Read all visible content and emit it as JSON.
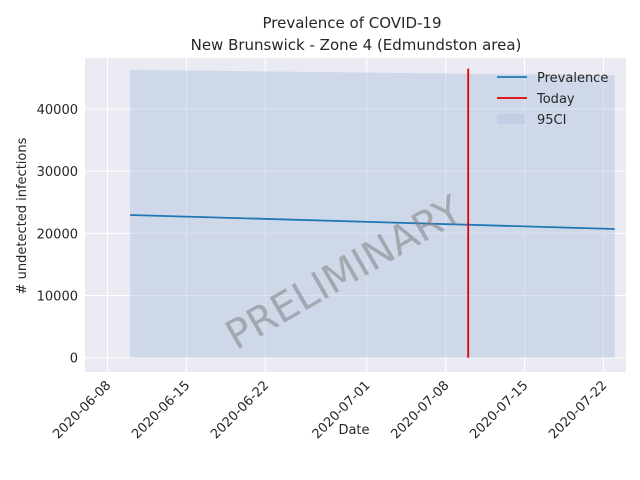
{
  "chart_data": {
    "type": "line",
    "title": "Prevalence of COVID-19",
    "subtitle": "New Brunswick - Zone 4 (Edmundston area)",
    "xlabel": "Date",
    "ylabel": "# undetected infections",
    "x_ticks": [
      "2020-06-08",
      "2020-06-15",
      "2020-06-22",
      "2020-07-01",
      "2020-07-08",
      "2020-07-15",
      "2020-07-22"
    ],
    "y_ticks": [
      0,
      10000,
      20000,
      30000,
      40000
    ],
    "xlim": [
      "2020-06-06",
      "2020-07-24"
    ],
    "ylim": [
      -2300,
      48200
    ],
    "series": [
      {
        "name": "Prevalence",
        "color": "#1f77b4",
        "x": [
          "2020-06-10",
          "2020-07-23"
        ],
        "values": [
          22950,
          20700
        ]
      }
    ],
    "band": {
      "name": "95CI",
      "color": "#b0c4de",
      "x": [
        "2020-06-10",
        "2020-07-23"
      ],
      "lower": [
        0,
        0
      ],
      "upper": [
        46300,
        45400
      ]
    },
    "today": {
      "name": "Today",
      "color": "#e00000",
      "x": "2020-07-10",
      "range": [
        0,
        46500
      ]
    },
    "legend_position": "top-right",
    "grid": true,
    "watermark": "PRELIMINARY"
  }
}
